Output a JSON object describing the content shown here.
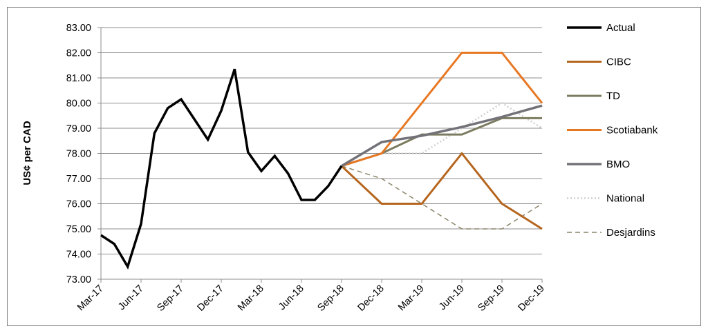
{
  "chart_data": {
    "type": "line",
    "title": "",
    "xlabel": "",
    "ylabel": "US¢ per CAD",
    "ylim": [
      73,
      83
    ],
    "yticks": [
      "73.00",
      "74.00",
      "75.00",
      "76.00",
      "77.00",
      "78.00",
      "79.00",
      "80.00",
      "81.00",
      "82.00",
      "83.00"
    ],
    "xticks": [
      "Mar-17",
      "Jun-17",
      "Sep-17",
      "Dec-17",
      "Mar-18",
      "Jun-18",
      "Sep-18",
      "Dec-18",
      "Mar-19",
      "Jun-19",
      "Sep-19",
      "Dec-19"
    ],
    "grid": "horizontal",
    "legend_position": "right",
    "series": [
      {
        "name": "Actual",
        "color": "#000000",
        "style": "solid",
        "width": 3.5,
        "points": [
          [
            "Mar-17",
            74.75
          ],
          [
            "Apr-17",
            74.4
          ],
          [
            "May-17",
            73.5
          ],
          [
            "Jun-17",
            75.2
          ],
          [
            "Jul-17",
            78.8
          ],
          [
            "Aug-17",
            79.8
          ],
          [
            "Sep-17",
            80.15
          ],
          [
            "Oct-17",
            79.35
          ],
          [
            "Nov-17",
            78.55
          ],
          [
            "Dec-17",
            79.7
          ],
          [
            "Jan-18",
            81.35
          ],
          [
            "Feb-18",
            78.05
          ],
          [
            "Mar-18",
            77.3
          ],
          [
            "Apr-18",
            77.9
          ],
          [
            "May-18",
            77.2
          ],
          [
            "Jun-18",
            76.15
          ],
          [
            "Jul-18",
            76.15
          ],
          [
            "Aug-18",
            76.7
          ],
          [
            "Sep-18",
            77.5
          ]
        ]
      },
      {
        "name": "CIBC",
        "color": "#b5651d",
        "style": "solid",
        "width": 3,
        "points": [
          [
            "Sep-18",
            77.5
          ],
          [
            "Dec-18",
            76.0
          ],
          [
            "Mar-19",
            76.0
          ],
          [
            "Jun-19",
            78.0
          ],
          [
            "Sep-19",
            76.0
          ],
          [
            "Dec-19",
            75.0
          ]
        ]
      },
      {
        "name": "TD",
        "color": "#7b7b5f",
        "style": "solid",
        "width": 3,
        "points": [
          [
            "Sep-18",
            77.5
          ],
          [
            "Dec-18",
            78.0
          ],
          [
            "Mar-19",
            78.75
          ],
          [
            "Jun-19",
            78.75
          ],
          [
            "Sep-19",
            79.4
          ],
          [
            "Dec-19",
            79.4
          ]
        ]
      },
      {
        "name": "Scotiabank",
        "color": "#e87722",
        "style": "solid",
        "width": 3,
        "points": [
          [
            "Sep-18",
            77.5
          ],
          [
            "Dec-18",
            78.0
          ],
          [
            "Mar-19",
            80.0
          ],
          [
            "Jun-19",
            82.0
          ],
          [
            "Sep-19",
            82.0
          ],
          [
            "Dec-19",
            80.0
          ]
        ]
      },
      {
        "name": "BMO",
        "color": "#747279",
        "style": "solid",
        "width": 3.5,
        "points": [
          [
            "Sep-18",
            77.5
          ],
          [
            "Dec-18",
            78.45
          ],
          [
            "Mar-19",
            78.7
          ],
          [
            "Jun-19",
            79.05
          ],
          [
            "Sep-19",
            79.45
          ],
          [
            "Dec-19",
            79.9
          ]
        ]
      },
      {
        "name": "National",
        "color": "#cfcfcf",
        "style": "dotted",
        "width": 2.5,
        "points": [
          [
            "Sep-18",
            77.5
          ],
          [
            "Dec-18",
            78.0
          ],
          [
            "Mar-19",
            78.0
          ],
          [
            "Jun-19",
            79.0
          ],
          [
            "Sep-19",
            80.0
          ],
          [
            "Dec-19",
            79.0
          ]
        ]
      },
      {
        "name": "Desjardins",
        "color": "#8a8468",
        "style": "dashed",
        "width": 1.5,
        "points": [
          [
            "Sep-18",
            77.5
          ],
          [
            "Dec-18",
            77.0
          ],
          [
            "Mar-19",
            76.0
          ],
          [
            "Jun-19",
            75.0
          ],
          [
            "Sep-19",
            75.0
          ],
          [
            "Dec-19",
            76.0
          ]
        ]
      }
    ]
  }
}
